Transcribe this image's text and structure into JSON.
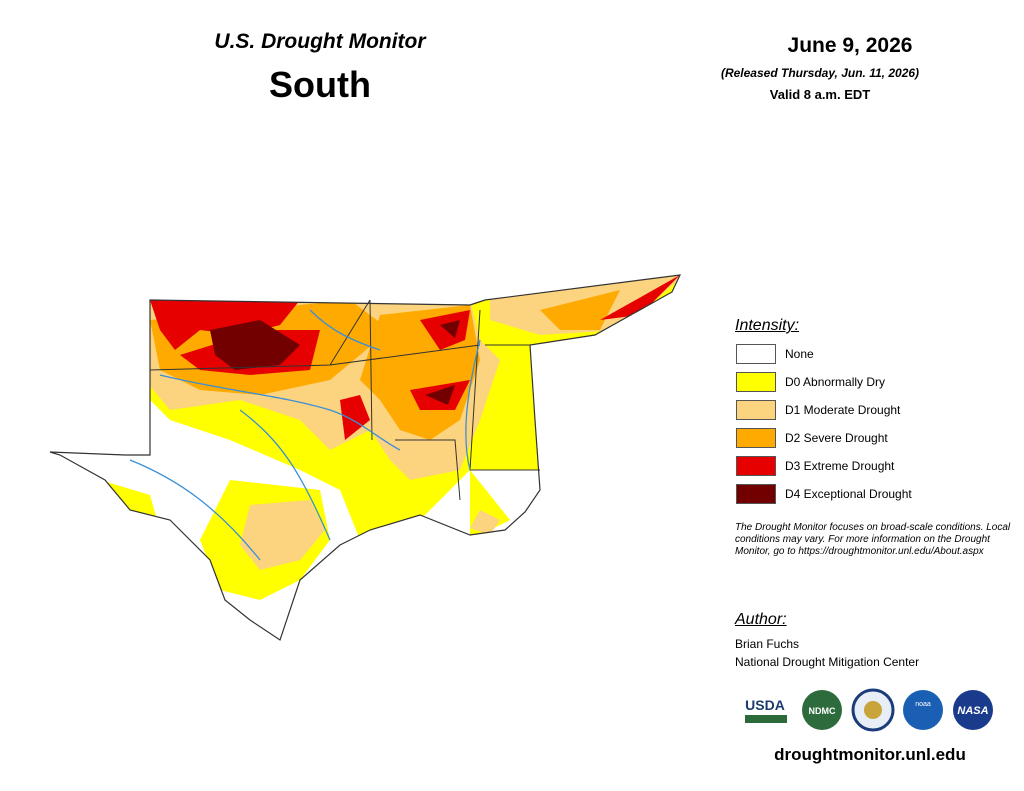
{
  "header": {
    "title": "U.S. Drought Monitor",
    "region": "South",
    "date": "June 9, 2026",
    "released": "(Released Thursday, Jun. 11, 2026)",
    "valid": "Valid 8 a.m. EDT"
  },
  "legend": {
    "title": "Intensity:",
    "items": [
      {
        "label": "None",
        "color": "#ffffff"
      },
      {
        "label": "D0 Abnormally Dry",
        "color": "#ffff00"
      },
      {
        "label": "D1 Moderate Drought",
        "color": "#fcd37f"
      },
      {
        "label": "D2 Severe Drought",
        "color": "#ffaa00"
      },
      {
        "label": "D3 Extreme Drought",
        "color": "#e60000"
      },
      {
        "label": "D4 Exceptional Drought",
        "color": "#730000"
      }
    ]
  },
  "note": "The Drought Monitor focuses on broad-scale conditions. Local conditions may vary. For more information on the Drought Monitor, go to https://droughtmonitor.unl.edu/About.aspx",
  "author": {
    "title": "Author:",
    "name": "Brian Fuchs",
    "org": "National Drought Mitigation Center"
  },
  "logos": [
    "USDA",
    "NDMC",
    "noaa",
    "NASA"
  ],
  "url": "droughtmonitor.unl.edu"
}
